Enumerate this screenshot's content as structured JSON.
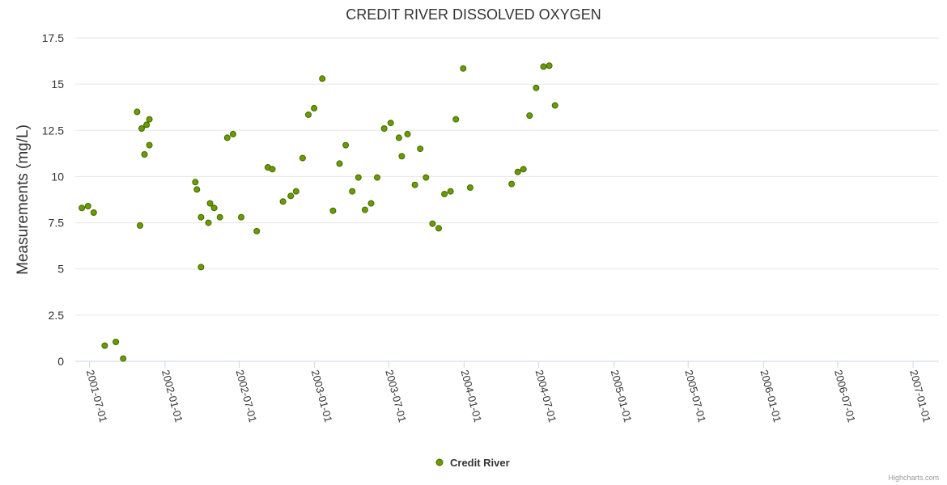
{
  "credits": "Highcharts.com",
  "colors": {
    "marker_fill": "#6c9a00",
    "marker_stroke": "#3f6a00",
    "grid": "#e6e6e6",
    "axis": "#ccd6eb"
  },
  "chart_data": {
    "type": "scatter",
    "title": "CREDIT RIVER DISSOLVED OXYGEN",
    "xlabel": "",
    "ylabel": "Measurements (mg/L)",
    "ylim": [
      0,
      17.5
    ],
    "xlim": [
      "2001-05-27",
      "2007-03-05"
    ],
    "y_ticks": [
      "0",
      "2.5",
      "5",
      "7.5",
      "10",
      "12.5",
      "15",
      "17.5"
    ],
    "x_ticks": [
      "2001-07-01",
      "2002-01-01",
      "2002-07-01",
      "2003-01-01",
      "2003-07-01",
      "2004-01-01",
      "2004-07-01",
      "2005-01-01",
      "2005-07-01",
      "2006-01-01",
      "2006-07-01",
      "2007-01-01"
    ],
    "grid": true,
    "legend_position": "bottom-center",
    "series": [
      {
        "name": "Credit River",
        "points": [
          [
            "2001-06-12",
            8.3
          ],
          [
            "2001-06-27",
            8.4
          ],
          [
            "2001-07-11",
            8.05
          ],
          [
            "2001-08-07",
            0.85
          ],
          [
            "2001-09-03",
            1.05
          ],
          [
            "2001-09-21",
            0.15
          ],
          [
            "2001-10-25",
            13.5
          ],
          [
            "2001-11-01",
            7.35
          ],
          [
            "2001-11-05",
            12.6
          ],
          [
            "2001-11-12",
            11.2
          ],
          [
            "2001-11-17",
            12.8
          ],
          [
            "2001-11-24",
            13.1
          ],
          [
            "2001-11-24",
            11.7
          ],
          [
            "2002-03-16",
            9.7
          ],
          [
            "2002-03-20",
            9.3
          ],
          [
            "2002-03-30",
            7.8
          ],
          [
            "2002-03-30",
            5.1
          ],
          [
            "2002-04-17",
            7.5
          ],
          [
            "2002-04-21",
            8.55
          ],
          [
            "2002-05-01",
            8.3
          ],
          [
            "2002-05-15",
            7.8
          ],
          [
            "2002-06-02",
            12.1
          ],
          [
            "2002-06-16",
            12.3
          ],
          [
            "2002-07-06",
            7.8
          ],
          [
            "2002-08-13",
            7.05
          ],
          [
            "2002-09-09",
            10.5
          ],
          [
            "2002-09-20",
            10.4
          ],
          [
            "2002-10-16",
            8.65
          ],
          [
            "2002-11-04",
            8.95
          ],
          [
            "2002-11-17",
            9.2
          ],
          [
            "2002-12-03",
            11.0
          ],
          [
            "2002-12-17",
            13.35
          ],
          [
            "2002-12-31",
            13.7
          ],
          [
            "2003-01-20",
            15.3
          ],
          [
            "2003-02-15",
            8.15
          ],
          [
            "2003-03-03",
            10.7
          ],
          [
            "2003-03-18",
            11.7
          ],
          [
            "2003-04-03",
            9.2
          ],
          [
            "2003-04-18",
            9.95
          ],
          [
            "2003-05-04",
            8.2
          ],
          [
            "2003-05-19",
            8.55
          ],
          [
            "2003-06-03",
            9.95
          ],
          [
            "2003-06-20",
            12.6
          ],
          [
            "2003-07-06",
            12.9
          ],
          [
            "2003-07-26",
            12.1
          ],
          [
            "2003-08-02",
            11.1
          ],
          [
            "2003-08-16",
            12.3
          ],
          [
            "2003-09-03",
            9.55
          ],
          [
            "2003-09-16",
            11.5
          ],
          [
            "2003-09-30",
            9.95
          ],
          [
            "2003-10-16",
            7.45
          ],
          [
            "2003-10-31",
            7.2
          ],
          [
            "2003-11-14",
            9.05
          ],
          [
            "2003-11-29",
            9.2
          ],
          [
            "2003-12-12",
            13.1
          ],
          [
            "2003-12-30",
            15.85
          ],
          [
            "2004-01-16",
            9.4
          ],
          [
            "2004-04-26",
            9.6
          ],
          [
            "2004-05-11",
            10.25
          ],
          [
            "2004-05-25",
            10.4
          ],
          [
            "2004-06-09",
            13.3
          ],
          [
            "2004-06-25",
            14.8
          ],
          [
            "2004-07-13",
            15.95
          ],
          [
            "2004-07-27",
            16.0
          ],
          [
            "2004-08-10",
            13.85
          ]
        ]
      }
    ]
  }
}
